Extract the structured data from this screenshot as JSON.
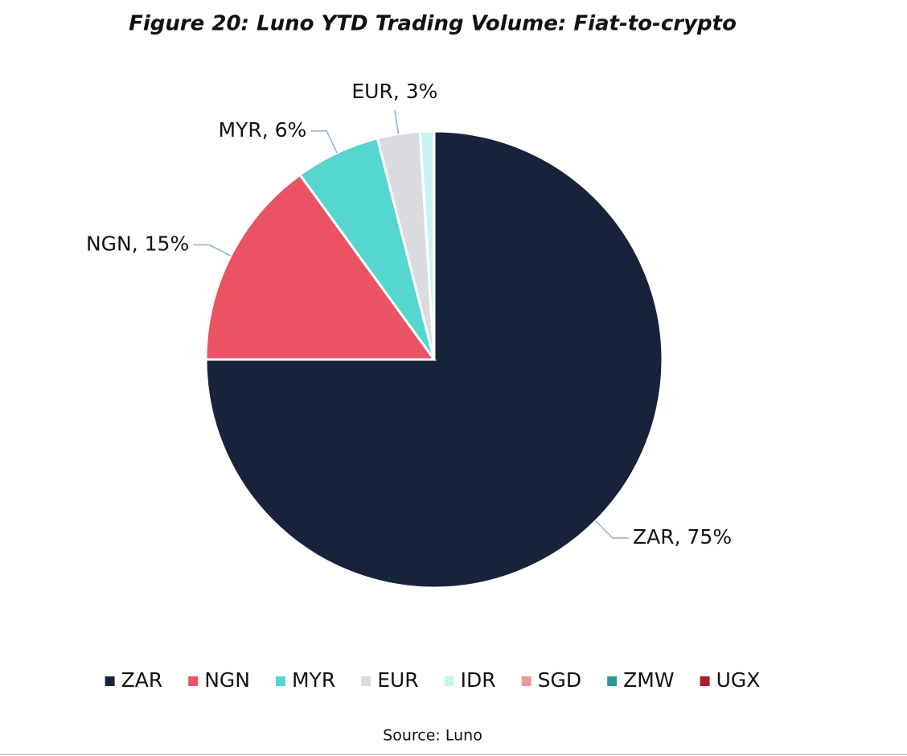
{
  "chart_data": {
    "type": "pie",
    "title": "Figure 20: Luno YTD Trading Volume: Fiat-to-crypto",
    "categories": [
      "ZAR",
      "NGN",
      "MYR",
      "EUR",
      "IDR",
      "SGD",
      "ZMW",
      "UGX"
    ],
    "values": [
      75,
      15,
      6,
      3,
      1,
      0,
      0,
      0
    ],
    "value_labels": [
      "ZAR, 75%",
      "NGN, 15%",
      "MYR, 6%",
      "EUR, 3%",
      null,
      null,
      null,
      null
    ],
    "colors": [
      "#16233a",
      "#eb5263",
      "#55d6cf",
      "#d9dbde",
      "#c9f3f2",
      "#f0959a",
      "#2b9a94",
      "#b01b2a"
    ],
    "legend": "bottom",
    "source": "Source: Luno"
  }
}
